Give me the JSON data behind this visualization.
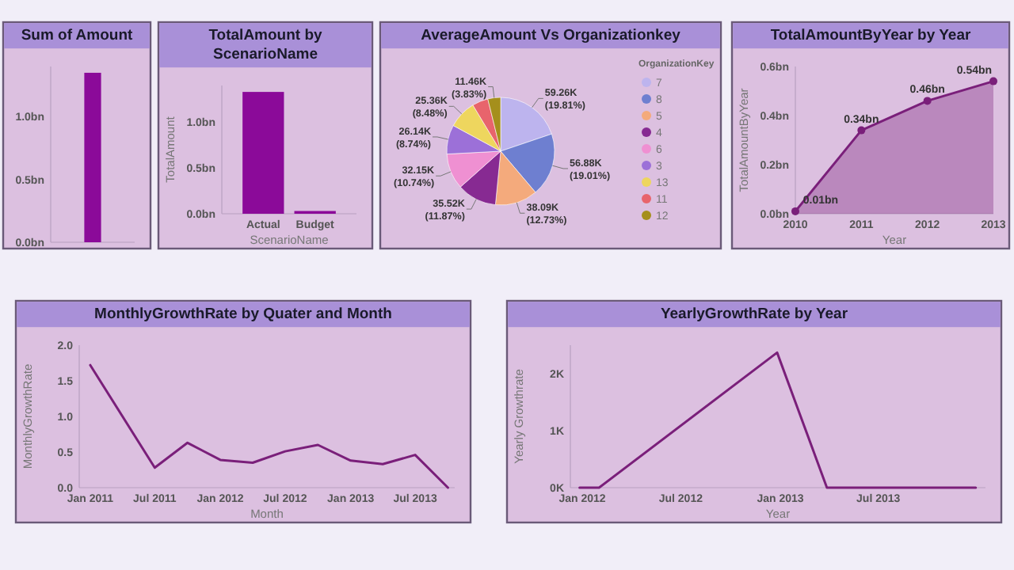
{
  "chart_data": [
    {
      "type": "bar",
      "title": "Sum of Amount",
      "categories": [
        null
      ],
      "values": [
        1.35
      ],
      "color": "#8b0a99",
      "ylim": [
        0,
        1.4
      ],
      "yticks": [
        {
          "value": 0,
          "label": "0.0bn"
        },
        {
          "value": 0.5,
          "label": "0.5bn"
        },
        {
          "value": 1,
          "label": "1.0bn"
        }
      ]
    },
    {
      "type": "bar",
      "title": "TotalAmount by ScenarioName",
      "xlabel": "ScenarioName",
      "ylabel": "TotalAmount",
      "categories": [
        "Actual",
        "Budget"
      ],
      "values": [
        1.33,
        0.03
      ],
      "color": "#8b0a99",
      "ylim": [
        0,
        1.4
      ],
      "yticks": [
        {
          "value": 0,
          "label": "0.0bn"
        },
        {
          "value": 0.5,
          "label": "0.5bn"
        },
        {
          "value": 1,
          "label": "1.0bn"
        }
      ]
    },
    {
      "type": "pie",
      "title": "AverageAmount Vs Organizationkey",
      "legend_title": "OrganizationKey",
      "legend": "right",
      "categories": [
        "7",
        "8",
        "5",
        "4",
        "6",
        "3",
        "13",
        "11",
        "12"
      ],
      "values": [
        19.81,
        19.01,
        12.73,
        11.87,
        10.74,
        8.74,
        8.48,
        4.79,
        3.83
      ],
      "value_labels": [
        "59.26K (19.81%)",
        "56.88K (19.01%)",
        "38.09K (12.73%)",
        "35.52K (11.87%)",
        "32.15K (10.74%)",
        "26.14K (8.74%)",
        "25.36K (8.48%)",
        null,
        "11.46K (3.83%)"
      ],
      "colors": [
        "#bdb4ee",
        "#6e7fd0",
        "#f4aa7c",
        "#872a92",
        "#ef90d2",
        "#9c70d8",
        "#eed65e",
        "#e8646c",
        "#a58f1c"
      ]
    },
    {
      "type": "area",
      "title": "TotalAmountByYear by Year",
      "xlabel": "Year",
      "ylabel": "TotalAmountByYear",
      "categories": [
        "2010",
        "2011",
        "2012",
        "2013"
      ],
      "values": [
        0.01,
        0.34,
        0.46,
        0.54
      ],
      "color": "#7a1f7a",
      "marker": "circle",
      "value_labels": [
        "0.01bn",
        "0.34bn",
        "0.46bn",
        "0.54bn"
      ],
      "ylim": [
        0,
        0.6
      ],
      "yticks": [
        {
          "value": 0,
          "label": "0.0bn"
        },
        {
          "value": 0.2,
          "label": "0.2bn"
        },
        {
          "value": 0.4,
          "label": "0.4bn"
        },
        {
          "value": 0.6,
          "label": "0.6bn"
        }
      ]
    },
    {
      "type": "line",
      "title": "MonthlyGrowthRate by Quater and Month",
      "xlabel": "Month",
      "ylabel": "MonthlyGrowthRate",
      "x": [
        "2011-01",
        "2011-07",
        "2011-10",
        "2012-01",
        "2012-04",
        "2012-07",
        "2012-10",
        "2013-01",
        "2013-04",
        "2013-07",
        "2013-10"
      ],
      "values": [
        1.72,
        0.28,
        0.63,
        0.39,
        0.35,
        0.51,
        0.6,
        0.38,
        0.33,
        0.46,
        0.0
      ],
      "color": "#7a1f7a",
      "xlim": [
        "2010-12-01",
        "2013-10-20"
      ],
      "xticks": [
        {
          "value": "2011-01",
          "label": "Jan 2011"
        },
        {
          "value": "2011-07",
          "label": "Jul 2011"
        },
        {
          "value": "2012-01",
          "label": "Jan 2012"
        },
        {
          "value": "2012-07",
          "label": "Jul 2012"
        },
        {
          "value": "2013-01",
          "label": "Jan 2013"
        },
        {
          "value": "2013-07",
          "label": "Jul 2013"
        }
      ],
      "ylim": [
        0,
        2
      ],
      "yticks": [
        {
          "value": 0,
          "label": "0.0"
        },
        {
          "value": 0.5,
          "label": "0.5"
        },
        {
          "value": 1,
          "label": "1.0"
        },
        {
          "value": 1.5,
          "label": "1.5"
        },
        {
          "value": 2,
          "label": "2.0"
        }
      ]
    },
    {
      "type": "line",
      "title": "YearlyGrowthRate by Year",
      "xlabel": "Year",
      "ylabel": "Yearly Growthrate",
      "x": [
        "2011-12-27",
        "2012-02-01",
        "2012-12-26",
        "2013-03-28",
        "2013-12-28"
      ],
      "values": [
        0,
        0,
        2.37,
        0,
        0
      ],
      "color": "#7a1f7a",
      "xlim": [
        "2011-12-10",
        "2014-01-15"
      ],
      "xticks": [
        {
          "value": "2012-01",
          "label": "Jan 2012"
        },
        {
          "value": "2012-07",
          "label": "Jul 2012"
        },
        {
          "value": "2013-01",
          "label": "Jan 2013"
        },
        {
          "value": "2013-07",
          "label": "Jul 2013"
        }
      ],
      "ylim": [
        0,
        2.5
      ],
      "yticks": [
        {
          "value": 0,
          "label": "0K"
        },
        {
          "value": 1,
          "label": "1K"
        },
        {
          "value": 2,
          "label": "2K"
        }
      ]
    }
  ]
}
